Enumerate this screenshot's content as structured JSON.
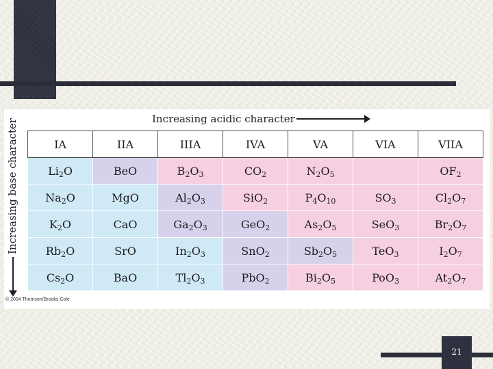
{
  "figure": {
    "top_label": "Increasing acidic character",
    "side_label": "Increasing base character",
    "copyright": "© 2004 Thomson/Brooks Cole"
  },
  "table": {
    "headers": [
      "IA",
      "IIA",
      "IIIA",
      "IVA",
      "VA",
      "VIA",
      "VIIA"
    ],
    "rows": [
      [
        [
          "Li",
          "2",
          "O",
          ""
        ],
        [
          "BeO"
        ],
        [
          "B",
          "2",
          "O",
          "3"
        ],
        [
          "CO",
          "2"
        ],
        [
          "N",
          "2",
          "O",
          "5"
        ],
        [
          ""
        ],
        [
          "OF",
          "2"
        ]
      ],
      [
        [
          "Na",
          "2",
          "O"
        ],
        [
          "MgO"
        ],
        [
          "Al",
          "2",
          "O",
          "3"
        ],
        [
          "SiO",
          "2"
        ],
        [
          "P",
          "4",
          "O",
          "10"
        ],
        [
          "SO",
          "3"
        ],
        [
          "Cl",
          "2",
          "O",
          "7"
        ]
      ],
      [
        [
          "K",
          "2",
          "O"
        ],
        [
          "CaO"
        ],
        [
          "Ga",
          "2",
          "O",
          "3"
        ],
        [
          "GeO",
          "2"
        ],
        [
          "As",
          "2",
          "O",
          "5"
        ],
        [
          "SeO",
          "3"
        ],
        [
          "Br",
          "2",
          "O",
          "7"
        ]
      ],
      [
        [
          "Rb",
          "2",
          "O"
        ],
        [
          "SrO"
        ],
        [
          "In",
          "2",
          "O",
          "3"
        ],
        [
          "SnO",
          "2"
        ],
        [
          "Sb",
          "2",
          "O",
          "5"
        ],
        [
          "TeO",
          "3"
        ],
        [
          "I",
          "2",
          "O",
          "7"
        ]
      ],
      [
        [
          "Cs",
          "2",
          "O"
        ],
        [
          "BaO"
        ],
        [
          "Tl",
          "2",
          "O",
          "3"
        ],
        [
          "PbO",
          "2"
        ],
        [
          "Bi",
          "2",
          "O",
          "5"
        ],
        [
          "PoO",
          "3"
        ],
        [
          "At",
          "2",
          "O",
          "7"
        ]
      ]
    ],
    "colors": {
      "basic": "#cfe9f6",
      "amphoteric": "#d7d1ec",
      "acidic": "#f6cfe0"
    }
  },
  "page_number": "21"
}
